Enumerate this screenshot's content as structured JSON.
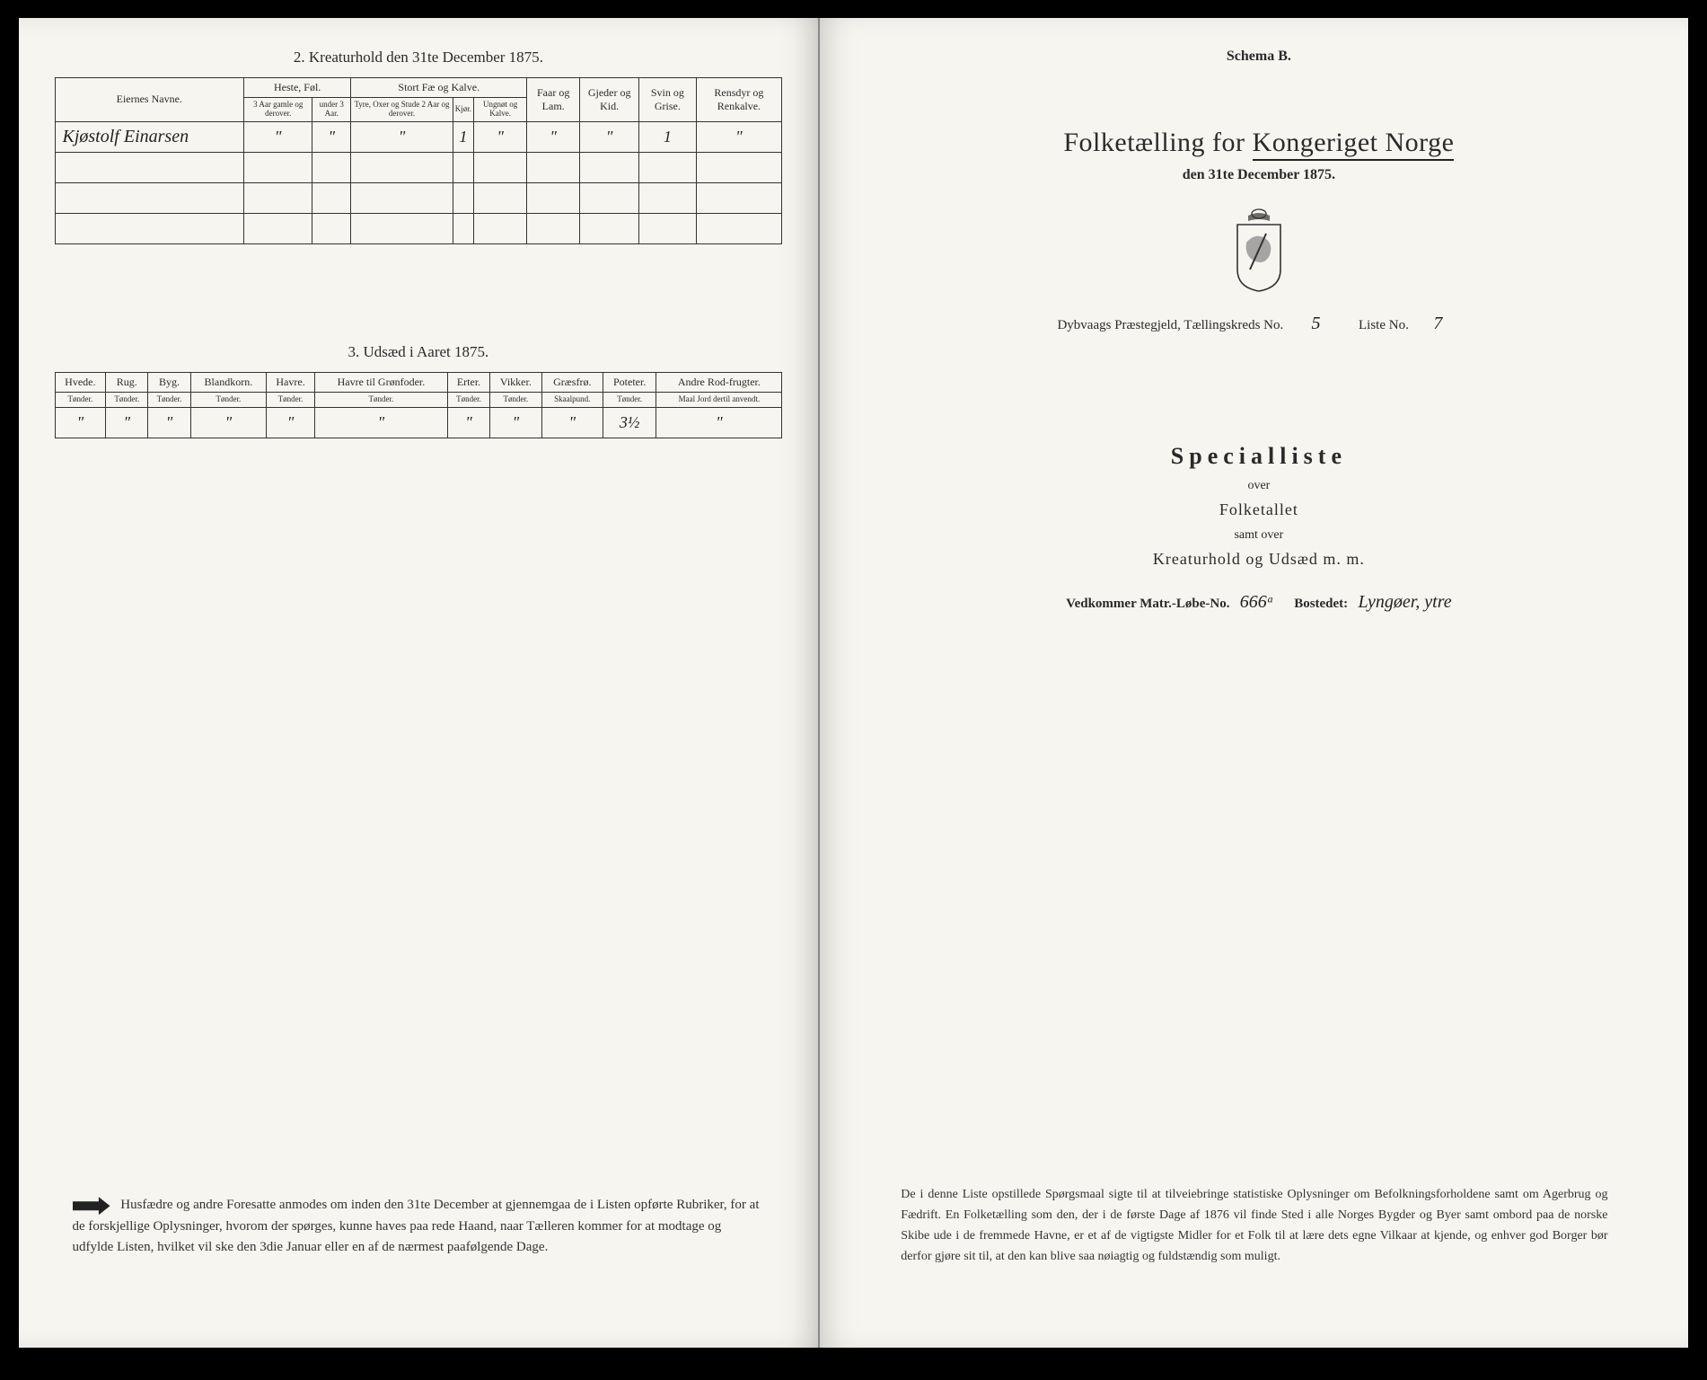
{
  "left": {
    "section2_title": "2. Kreaturhold den 31te December 1875.",
    "table2": {
      "col_owner": "Eiernes Navne.",
      "grp_heste": "Heste, Føl.",
      "grp_stort": "Stort Fæ og Kalve.",
      "col_faar": "Faar og Lam.",
      "col_gjeder": "Gjeder og Kid.",
      "col_svin": "Svin og Grise.",
      "col_rensdyr": "Rensdyr og Renkalve.",
      "sub_heste1": "3 Aar gamle og derover.",
      "sub_heste2": "under 3 Aar.",
      "sub_stort1": "Tyre, Oxer og Stude 2 Aar og derover.",
      "sub_stort2": "Kjør.",
      "sub_stort3": "Ungnøt og Kalve.",
      "rows": [
        {
          "name": "Kjøstolf Einarsen",
          "c1": "\"",
          "c2": "\"",
          "c3": "\"",
          "c4": "1",
          "c5": "\"",
          "c6": "\"",
          "c7": "\"",
          "c8": "1",
          "c9": "\""
        }
      ]
    },
    "section3_title": "3. Udsæd i Aaret 1875.",
    "table3": {
      "headers": [
        {
          "h": "Hvede.",
          "s": "Tønder."
        },
        {
          "h": "Rug.",
          "s": "Tønder."
        },
        {
          "h": "Byg.",
          "s": "Tønder."
        },
        {
          "h": "Blandkorn.",
          "s": "Tønder."
        },
        {
          "h": "Havre.",
          "s": "Tønder."
        },
        {
          "h": "Havre til Grønfoder.",
          "s": "Tønder."
        },
        {
          "h": "Erter.",
          "s": "Tønder."
        },
        {
          "h": "Vikker.",
          "s": "Tønder."
        },
        {
          "h": "Græsfrø.",
          "s": "Skaalpund."
        },
        {
          "h": "Poteter.",
          "s": "Tønder."
        },
        {
          "h": "Andre Rod-frugter.",
          "s": "Maal Jord dertil anvendt."
        }
      ],
      "row": [
        "\"",
        "\"",
        "\"",
        "\"",
        "\"",
        "\"",
        "\"",
        "\"",
        "\"",
        "3½",
        "\""
      ]
    },
    "footer": "Husfædre og andre Foresatte anmodes om inden den 31te December at gjennemgaa de i Listen opførte Rubriker, for at de forskjellige Oplysninger, hvorom der spørges, kunne haves paa rede Haand, naar Tælleren kommer for at modtage og udfylde Listen, hvilket vil ske den 3die Januar eller en af de nærmest paafølgende Dage."
  },
  "right": {
    "schema": "Schema B.",
    "title_pre": "Folketælling for ",
    "title_post": "Kongeriget Norge",
    "date": "den 31te December 1875.",
    "kreds_line_pre": "Dybvaags Præstegjeld, Tællingskreds No.",
    "kreds_no": "5",
    "liste_label": "Liste No.",
    "liste_no": "7",
    "spec": "Specialliste",
    "over": "over",
    "folketallet": "Folketallet",
    "samt": "samt over",
    "kreatur": "Kreaturhold og Udsæd m. m.",
    "matr_pre": "Vedkommer Matr.-Løbe-No.",
    "matr_no": "666ᵃ",
    "bostedet_label": "Bostedet:",
    "bostedet": "Lyngøer, ytre",
    "footer": "De i denne Liste opstillede Spørgsmaal sigte til at tilveiebringe statistiske Oplysninger om Befolkningsforholdene samt om Agerbrug og Fædrift. En Folketælling som den, der i de første Dage af 1876 vil finde Sted i alle Norges Bygder og Byer samt ombord paa de norske Skibe ude i de fremmede Havne, er et af de vigtigste Midler for et Folk til at lære dets egne Vilkaar at kjende, og enhver god Borger bør derfor gjøre sit til, at den kan blive saa nøiagtig og fuldstændig som muligt."
  }
}
